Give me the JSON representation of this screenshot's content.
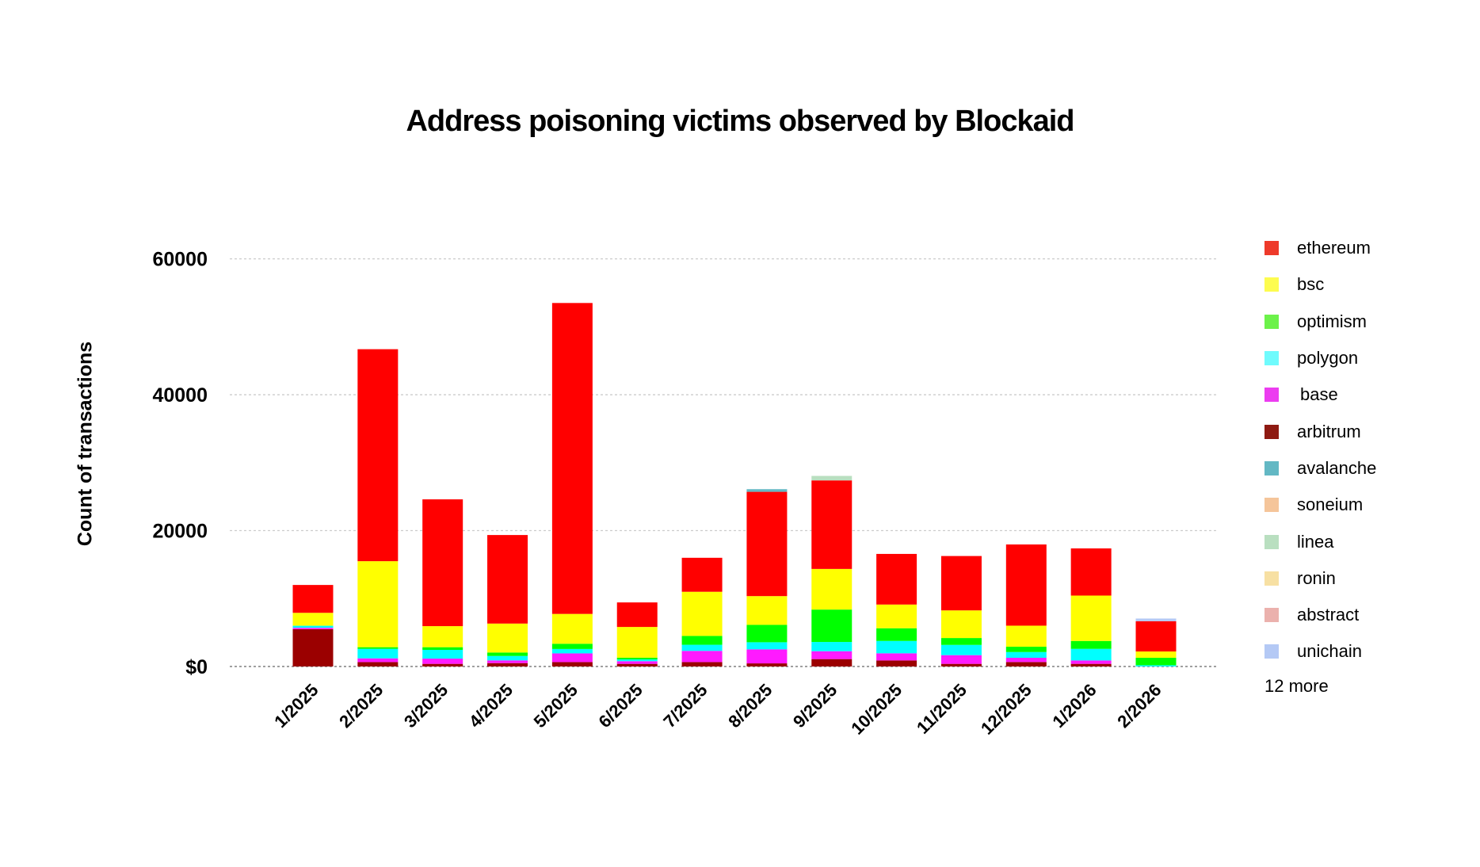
{
  "chart_data": {
    "type": "bar",
    "stacked": true,
    "title": "Address poisoning victims observed by Blockaid",
    "xlabel": "",
    "ylabel": "Count of transactions",
    "ylim": [
      0,
      60000
    ],
    "yticks": [
      {
        "value": 0,
        "label": "$0"
      },
      {
        "value": 20000,
        "label": "20000"
      },
      {
        "value": 40000,
        "label": "40000"
      },
      {
        "value": 60000,
        "label": "60000"
      }
    ],
    "grid": true,
    "legend_position": "right",
    "legend_more": "12 more",
    "categories": [
      "1/2025",
      "2/2025",
      "3/2025",
      "4/2025",
      "5/2025",
      "6/2025",
      "7/2025",
      "8/2025",
      "9/2025",
      "10/2025",
      "11/2025",
      "12/2025",
      "1/2026",
      "2/2026"
    ],
    "series": [
      {
        "name": "arbitrum",
        "color": "#9b0000",
        "values": [
          5500,
          650,
          390,
          500,
          650,
          390,
          650,
          460,
          1090,
          890,
          390,
          660,
          390,
          0
        ]
      },
      {
        "name": "base",
        "color": "#ff1aff",
        "values": [
          200,
          550,
          770,
          400,
          1280,
          390,
          1650,
          2060,
          1160,
          1050,
          1280,
          620,
          500,
          0
        ]
      },
      {
        "name": "polygon",
        "color": "#00ffff",
        "values": [
          300,
          1400,
          1290,
          650,
          650,
          260,
          900,
          1050,
          1360,
          1820,
          1510,
          850,
          1710,
          190
        ]
      },
      {
        "name": "optimism",
        "color": "#00ff00",
        "values": [
          0,
          240,
          390,
          510,
          770,
          260,
          1300,
          2560,
          4770,
          1870,
          1010,
          780,
          1160,
          1090
        ]
      },
      {
        "name": "bsc",
        "color": "#ffff00",
        "values": [
          1900,
          12660,
          3100,
          4260,
          4390,
          4520,
          6500,
          4230,
          5980,
          3490,
          4070,
          3100,
          6680,
          930
        ]
      },
      {
        "name": "ethereum",
        "color": "#ff0000",
        "values": [
          4100,
          31200,
          18660,
          13030,
          45760,
          3610,
          5000,
          15350,
          13030,
          7450,
          8000,
          11950,
          6940,
          4460
        ]
      },
      {
        "name": "avalanche",
        "color": "#63b8c4",
        "values": [
          0,
          0,
          0,
          0,
          0,
          0,
          0,
          390,
          0,
          0,
          0,
          0,
          0,
          0
        ]
      },
      {
        "name": "soneium",
        "color": "#f5c59a",
        "values": [
          0,
          0,
          0,
          0,
          0,
          0,
          0,
          0,
          0,
          0,
          0,
          0,
          0,
          0
        ]
      },
      {
        "name": "linea",
        "color": "#b9dfc0",
        "values": [
          0,
          0,
          0,
          0,
          0,
          0,
          0,
          0,
          660,
          0,
          0,
          0,
          0,
          0
        ]
      },
      {
        "name": "ronin",
        "color": "#f7e0a3",
        "values": [
          0,
          0,
          0,
          0,
          0,
          0,
          0,
          0,
          0,
          0,
          0,
          0,
          0,
          0
        ]
      },
      {
        "name": "abstract",
        "color": "#ebb1ad",
        "values": [
          0,
          0,
          0,
          0,
          0,
          0,
          0,
          0,
          0,
          0,
          0,
          0,
          0,
          0
        ]
      },
      {
        "name": "unichain",
        "color": "#b4c9f5",
        "values": [
          0,
          0,
          0,
          0,
          0,
          0,
          0,
          0,
          0,
          0,
          0,
          0,
          0,
          390
        ]
      }
    ],
    "legend_order": [
      "ethereum",
      "bsc",
      "optimism",
      "polygon",
      "base",
      "arbitrum",
      "avalanche",
      "soneium",
      "linea",
      "ronin",
      "abstract",
      "unichain"
    ],
    "legend_colors": {
      "ethereum": "#ee3a2a",
      "bsc": "#fdfc4f",
      "optimism": "#6cf24a",
      "polygon": "#6ffbfd",
      "base": "#ec3cf0",
      "arbitrum": "#8e1a12",
      "avalanche": "#63b8c4",
      "soneium": "#f5c59a",
      "linea": "#b9dfc0",
      "ronin": "#f7e0a3",
      "abstract": "#ebb1ad",
      "unichain": "#b4c9f5"
    }
  }
}
